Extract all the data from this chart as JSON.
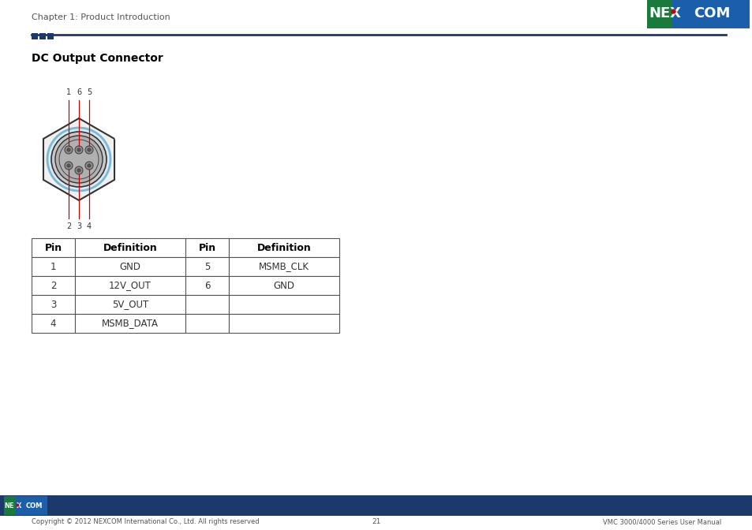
{
  "page_bg": "#ffffff",
  "header_text": "Chapter 1: Product Introduction",
  "header_text_color": "#555555",
  "header_text_size": 8,
  "divider_color": "#1b3a6b",
  "section_title": "DC Output Connector",
  "section_title_size": 10,
  "pin_line_color": "#cc0000",
  "table_border_color": "#555555",
  "table_columns": [
    "Pin",
    "Definition",
    "Pin",
    "Definition"
  ],
  "table_data": [
    [
      "1",
      "GND",
      "5",
      "MSMB_CLK"
    ],
    [
      "2",
      "12V_OUT",
      "6",
      "GND"
    ],
    [
      "3",
      "5V_OUT",
      "",
      ""
    ],
    [
      "4",
      "MSMB_DATA",
      "",
      ""
    ]
  ],
  "footer_bg": "#1b3a6b",
  "footer_copyright": "Copyright © 2012 NEXCOM International Co., Ltd. All rights reserved",
  "footer_page_num": "21",
  "footer_manual": "VMC 3000/4000 Series User Manual",
  "footer_small_text_color": "#555555",
  "logo_green": "#1a7a3c",
  "logo_blue": "#1b5faa",
  "logo_red": "#cc0000",
  "logo_white": "#ffffff",
  "connector_hex_face": "#f0f0f0",
  "connector_hex_edge": "#333333",
  "connector_ring1_face": "#d8eaf5",
  "connector_ring1_edge": "#7ab8d4",
  "connector_ring2_face": "#c8c8c8",
  "connector_ring2_edge": "#555555",
  "connector_inner_face": "#b0b0b0",
  "connector_pin_face": "#909090",
  "connector_pin_edge": "#444444",
  "connector_pin_center": "#555555"
}
